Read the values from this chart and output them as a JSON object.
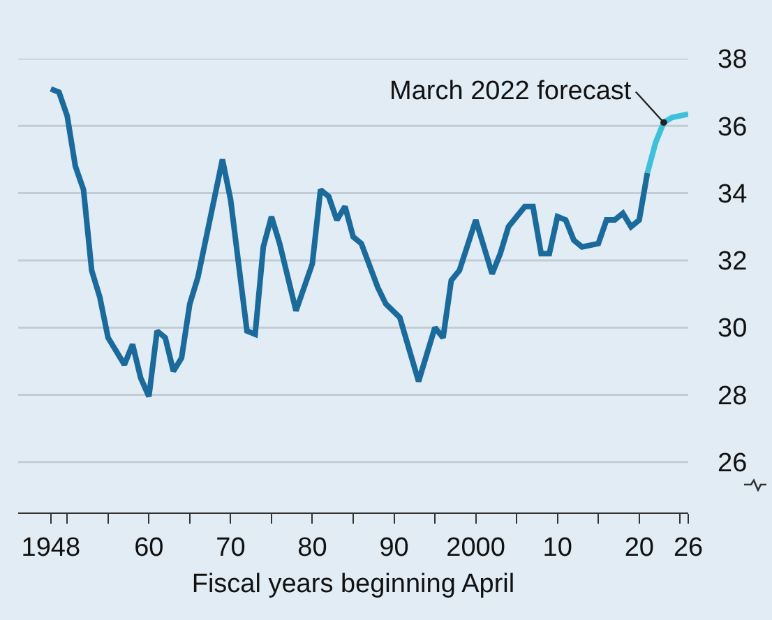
{
  "chart_data": {
    "type": "line",
    "xlabel": "Fiscal years beginning April",
    "xlim": [
      1944,
      2026
    ],
    "xticks": [
      {
        "value": 1948,
        "label": "1948"
      },
      {
        "value": 1950,
        "label": null
      },
      {
        "value": 1955,
        "label": null
      },
      {
        "value": 1960,
        "label": "60"
      },
      {
        "value": 1965,
        "label": null
      },
      {
        "value": 1970,
        "label": "70"
      },
      {
        "value": 1975,
        "label": null
      },
      {
        "value": 1980,
        "label": "80"
      },
      {
        "value": 1985,
        "label": null
      },
      {
        "value": 1990,
        "label": "90"
      },
      {
        "value": 1995,
        "label": null
      },
      {
        "value": 2000,
        "label": "2000"
      },
      {
        "value": 2005,
        "label": null
      },
      {
        "value": 2010,
        "label": "10"
      },
      {
        "value": 2015,
        "label": null
      },
      {
        "value": 2020,
        "label": "20"
      },
      {
        "value": 2025,
        "label": null
      },
      {
        "value": 2026,
        "label": "26"
      }
    ],
    "ylim": [
      24.5,
      38
    ],
    "yticks": [
      26,
      28,
      30,
      32,
      34,
      36,
      38
    ],
    "grid": "y",
    "marker": "none",
    "line_style": "solid",
    "series": [
      {
        "color": "#1b6a9c",
        "x": [
          1948,
          1949,
          1950,
          1951,
          1952,
          1953,
          1954,
          1955,
          1957,
          1958,
          1959,
          1960,
          1961,
          1962,
          1963,
          1964,
          1965,
          1966,
          1969,
          1970,
          1972,
          1973,
          1974,
          1975,
          1976,
          1978,
          1980,
          1981,
          1982,
          1983,
          1984,
          1985,
          1986,
          1988,
          1989,
          1990.7,
          1993,
          1995,
          1996,
          1997,
          1998,
          2000,
          2002,
          2003,
          2004,
          2006,
          2007,
          2008,
          2009,
          2010,
          2011,
          2012,
          2013,
          2015,
          2016,
          2017,
          2018,
          2019,
          2020,
          2021
        ],
        "values": [
          37.1,
          37.0,
          36.3,
          34.8,
          34.1,
          31.7,
          30.9,
          29.7,
          28.9,
          29.5,
          28.5,
          27.95,
          29.9,
          29.7,
          28.7,
          29.1,
          30.7,
          31.5,
          35.0,
          33.8,
          29.9,
          29.8,
          32.4,
          33.3,
          32.5,
          30.5,
          31.9,
          34.1,
          33.9,
          33.2,
          33.6,
          32.7,
          32.5,
          31.2,
          30.7,
          30.3,
          28.4,
          30.0,
          29.7,
          31.4,
          31.7,
          33.2,
          31.6,
          32.2,
          33.0,
          33.6,
          33.6,
          32.2,
          32.2,
          33.3,
          33.2,
          32.6,
          32.4,
          32.5,
          33.2,
          33.2,
          33.4,
          33.0,
          33.2,
          34.6
        ]
      },
      {
        "color": "#3fc0da",
        "x": [
          2021,
          2022,
          2023,
          2024,
          2025,
          2026
        ],
        "values": [
          34.6,
          35.5,
          36.1,
          36.25,
          36.3,
          36.35
        ]
      }
    ],
    "annotations": [
      {
        "text": "March 2022 forecast",
        "x": 2023,
        "y": 36.1
      }
    ]
  }
}
